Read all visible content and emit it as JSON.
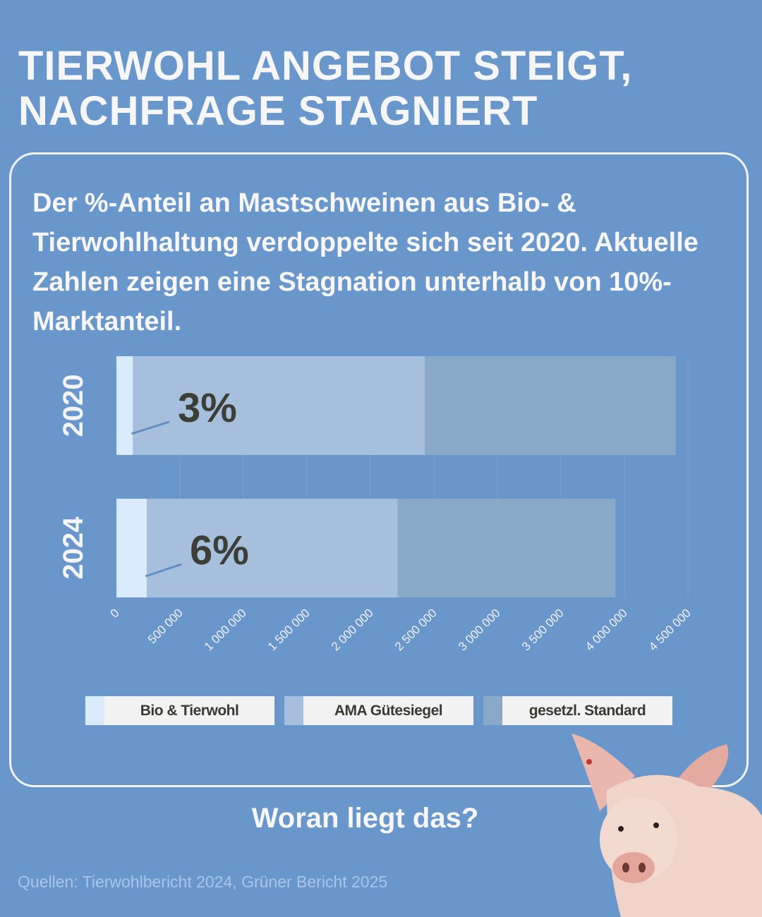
{
  "title": [
    "TIERWOHL ANGEBOT STEIGT,",
    "NACHFRAGE STAGNIERT"
  ],
  "subtitle": "Der %-Anteil an Mastschweinen aus Bio- & Tierwohlhaltung verdoppelte sich seit 2020. Aktuelle Zahlen zeigen eine Stagnation unterhalb von 10%-Marktanteil.",
  "chart_data": {
    "type": "bar",
    "orientation": "horizontal",
    "stacked": true,
    "categories": [
      "2020",
      "2024"
    ],
    "series": [
      {
        "name": "Bio & Tierwohl",
        "color": "#d9ebfd",
        "values": [
          130000,
          240000
        ]
      },
      {
        "name": "AMA Gütesiegel",
        "color": "#a5bfdc",
        "values": [
          2300000,
          1975000
        ]
      },
      {
        "name": "gesetzl. Standard",
        "color": "#89a9c9",
        "values": [
          1975000,
          1715000
        ]
      }
    ],
    "annotations": [
      "3%",
      "6%"
    ],
    "xlim": [
      0,
      4500000
    ],
    "xticks": [
      "0",
      "500 000",
      "1 000 000",
      "1 500 000",
      "2 000 000",
      "2 500 000",
      "3 000 000",
      "3 500 000",
      "4 000 000",
      "4 500 000"
    ],
    "grid": true,
    "legend": "bottom"
  },
  "question": "Woran liegt das?",
  "source": "Quellen: Tierwohlbericht 2024, Grüner Bericht 2025"
}
